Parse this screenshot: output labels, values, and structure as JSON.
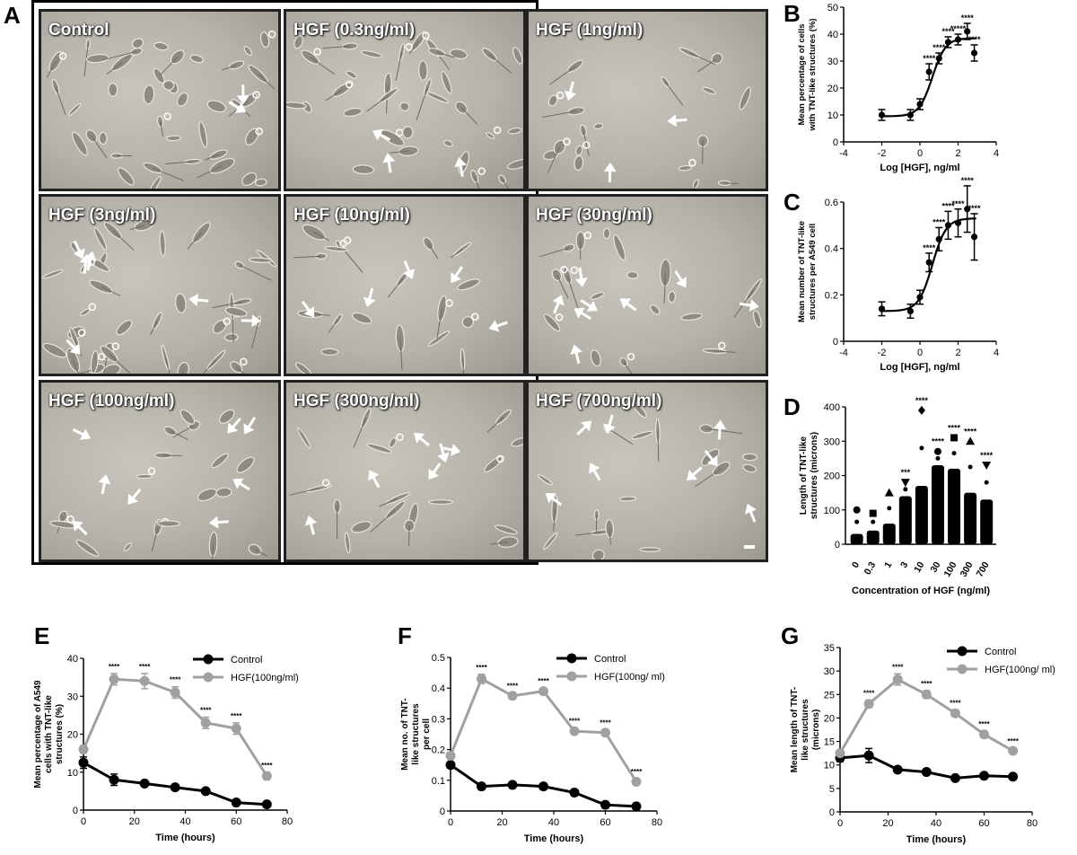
{
  "panel_letters": {
    "A": "A",
    "B": "B",
    "C": "C",
    "D": "D",
    "E": "E",
    "F": "F",
    "G": "G"
  },
  "micrographs": [
    {
      "label": "Control",
      "arrows": 2
    },
    {
      "label": "HGF (0.3ng/ml)",
      "arrows": 3
    },
    {
      "label": "HGF (1ng/ml)",
      "arrows": 3
    },
    {
      "label": "HGF (3ng/ml)",
      "arrows": 6
    },
    {
      "label": "HGF (10ng/ml)",
      "arrows": 5
    },
    {
      "label": "HGF (30ng/ml)",
      "arrows": 8
    },
    {
      "label": "HGF (100ng/ml)",
      "arrows": 8
    },
    {
      "label": "HGF (300ng/ml)",
      "arrows": 6
    },
    {
      "label": "HGF (700ng/ml)",
      "arrows": 8
    }
  ],
  "colors": {
    "control": "#000000",
    "hgf": "#a0a0a0",
    "frame": "#000000",
    "micro_bg": "#b9b4ac"
  },
  "chart_data": [
    {
      "id": "B",
      "type": "scatter",
      "xlabel": "Log [HGF], ng/ml",
      "ylabel": [
        "Mean percentage of cells",
        "with TNT-like structures (%)"
      ],
      "xlim": [
        -4,
        4
      ],
      "ylim": [
        0,
        50
      ],
      "xticks": [
        -4,
        -2,
        0,
        2,
        4
      ],
      "yticks": [
        0,
        10,
        20,
        30,
        40,
        50
      ],
      "x": [
        -2,
        -0.5,
        0,
        0.48,
        1,
        1.48,
        2,
        2.48,
        2.85
      ],
      "y": [
        10,
        10,
        14,
        26,
        31,
        37,
        38,
        41,
        33
      ],
      "err": [
        2,
        2,
        2,
        3,
        2,
        2,
        2,
        3,
        3
      ],
      "stars": [
        "",
        "",
        "",
        "****",
        "****",
        "****",
        "*****",
        "****",
        "****"
      ],
      "curve": {
        "bottom": 9.5,
        "top": 38.5,
        "logEC50": 0.65,
        "hill": 1.25
      }
    },
    {
      "id": "C",
      "type": "scatter",
      "xlabel": "Log [HGF], ng/ml",
      "ylabel": [
        "Mean number of TNT-like",
        "structures per A549 cell"
      ],
      "xlim": [
        -4,
        4
      ],
      "ylim": [
        0,
        0.6
      ],
      "xticks": [
        -4,
        -2,
        0,
        2,
        4
      ],
      "yticks": [
        0,
        0.2,
        0.4,
        0.6
      ],
      "x": [
        -2,
        -0.5,
        0,
        0.48,
        1,
        1.48,
        2,
        2.48,
        2.85
      ],
      "y": [
        0.14,
        0.13,
        0.19,
        0.34,
        0.44,
        0.5,
        0.51,
        0.57,
        0.45
      ],
      "err": [
        0.03,
        0.03,
        0.03,
        0.04,
        0.05,
        0.06,
        0.06,
        0.1,
        0.1
      ],
      "stars": [
        "",
        "",
        "",
        "****",
        "****",
        "****",
        "****",
        "****",
        "****"
      ],
      "curve": {
        "bottom": 0.13,
        "top": 0.53,
        "logEC50": 0.65,
        "hill": 1.2
      }
    },
    {
      "id": "D",
      "type": "scatter",
      "xlabel": "Concentration of HGF (ng/ml)",
      "ylabel": [
        "Length of TNT-like",
        "structures (microns)"
      ],
      "categories": [
        "0",
        "0.3",
        "1",
        "3",
        "10",
        "30",
        "100",
        "300",
        "700"
      ],
      "ylim": [
        0,
        400
      ],
      "yticks": [
        0,
        100,
        200,
        300,
        400
      ],
      "max": [
        100,
        90,
        150,
        180,
        390,
        270,
        310,
        300,
        230
      ],
      "dense": [
        30,
        40,
        60,
        140,
        170,
        230,
        220,
        150,
        130
      ],
      "stars": [
        "",
        "",
        "",
        "***",
        "****",
        "****",
        "****",
        "****",
        "****"
      ],
      "markers": [
        "circle",
        "square",
        "triangle",
        "triangle-down",
        "diamond",
        "circle",
        "square",
        "triangle",
        "triangle-down"
      ]
    },
    {
      "id": "E",
      "type": "line",
      "xlabel": "Time (hours)",
      "ylabel": [
        "Mean percentage of A549",
        "cells with TNT-like",
        "structures (%)"
      ],
      "xlim": [
        0,
        80
      ],
      "ylim": [
        0,
        40
      ],
      "xticks": [
        0,
        20,
        40,
        60,
        80
      ],
      "yticks": [
        0,
        10,
        20,
        30,
        40
      ],
      "x": [
        0,
        12,
        24,
        36,
        48,
        60,
        72
      ],
      "series": [
        {
          "name": "Control",
          "values": [
            12.5,
            8,
            7,
            6,
            5,
            2,
            1.5
          ],
          "err": [
            1.5,
            1.5,
            0.5,
            0.5,
            0.5,
            0.5,
            0.5
          ]
        },
        {
          "name": "HGF(100ng/ml)",
          "values": [
            16,
            34.5,
            34,
            31,
            23,
            21.5,
            9
          ],
          "err": [
            1,
            1.5,
            2,
            1.5,
            1.5,
            1.5,
            1
          ]
        }
      ],
      "stars": [
        "",
        "****",
        "****",
        "****",
        "****",
        "****",
        "****"
      ]
    },
    {
      "id": "F",
      "type": "line",
      "xlabel": "Time (hours)",
      "ylabel": [
        "Mean no. of TNT-",
        "like structures",
        "per cell"
      ],
      "xlim": [
        0,
        80
      ],
      "ylim": [
        0,
        0.5
      ],
      "xticks": [
        0,
        20,
        40,
        60,
        80
      ],
      "yticks": [
        0,
        0.1,
        0.2,
        0.3,
        0.4,
        0.5
      ],
      "x": [
        0,
        12,
        24,
        36,
        48,
        60,
        72
      ],
      "series": [
        {
          "name": "Control",
          "values": [
            0.15,
            0.08,
            0.085,
            0.08,
            0.06,
            0.02,
            0.015
          ],
          "err": [
            0.01,
            0.01,
            0.01,
            0.01,
            0.01,
            0.01,
            0.01
          ]
        },
        {
          "name": "HGF(100ng/ ml)",
          "values": [
            0.18,
            0.43,
            0.375,
            0.39,
            0.26,
            0.255,
            0.095
          ],
          "err": [
            0.01,
            0.015,
            0.01,
            0.01,
            0.01,
            0.01,
            0.01
          ]
        }
      ],
      "stars": [
        "",
        "****",
        "****",
        "****",
        "****",
        "****",
        "****"
      ]
    },
    {
      "id": "G",
      "type": "line",
      "xlabel": "Time (hours)",
      "ylabel": [
        "Mean length of TNT-",
        "like structures",
        "(microns)"
      ],
      "xlim": [
        0,
        80
      ],
      "ylim": [
        0,
        35
      ],
      "xticks": [
        0,
        20,
        40,
        60,
        80
      ],
      "yticks": [
        0,
        5,
        10,
        15,
        20,
        25,
        30,
        35
      ],
      "x": [
        0,
        12,
        24,
        36,
        48,
        60,
        72
      ],
      "series": [
        {
          "name": "Control",
          "values": [
            11.5,
            12,
            9,
            8.5,
            7.2,
            7.7,
            7.5
          ],
          "err": [
            0.8,
            1.5,
            0.5,
            0.5,
            0.5,
            0.5,
            0.5
          ]
        },
        {
          "name": "HGF(100ng/ ml)",
          "values": [
            12.5,
            23,
            28.2,
            25,
            21,
            16.5,
            13
          ],
          "err": [
            0.5,
            0.8,
            1.2,
            0.8,
            0.7,
            0.7,
            0.6
          ]
        }
      ],
      "stars": [
        "",
        "****",
        "****",
        "****",
        "****",
        "****",
        "****"
      ]
    }
  ]
}
